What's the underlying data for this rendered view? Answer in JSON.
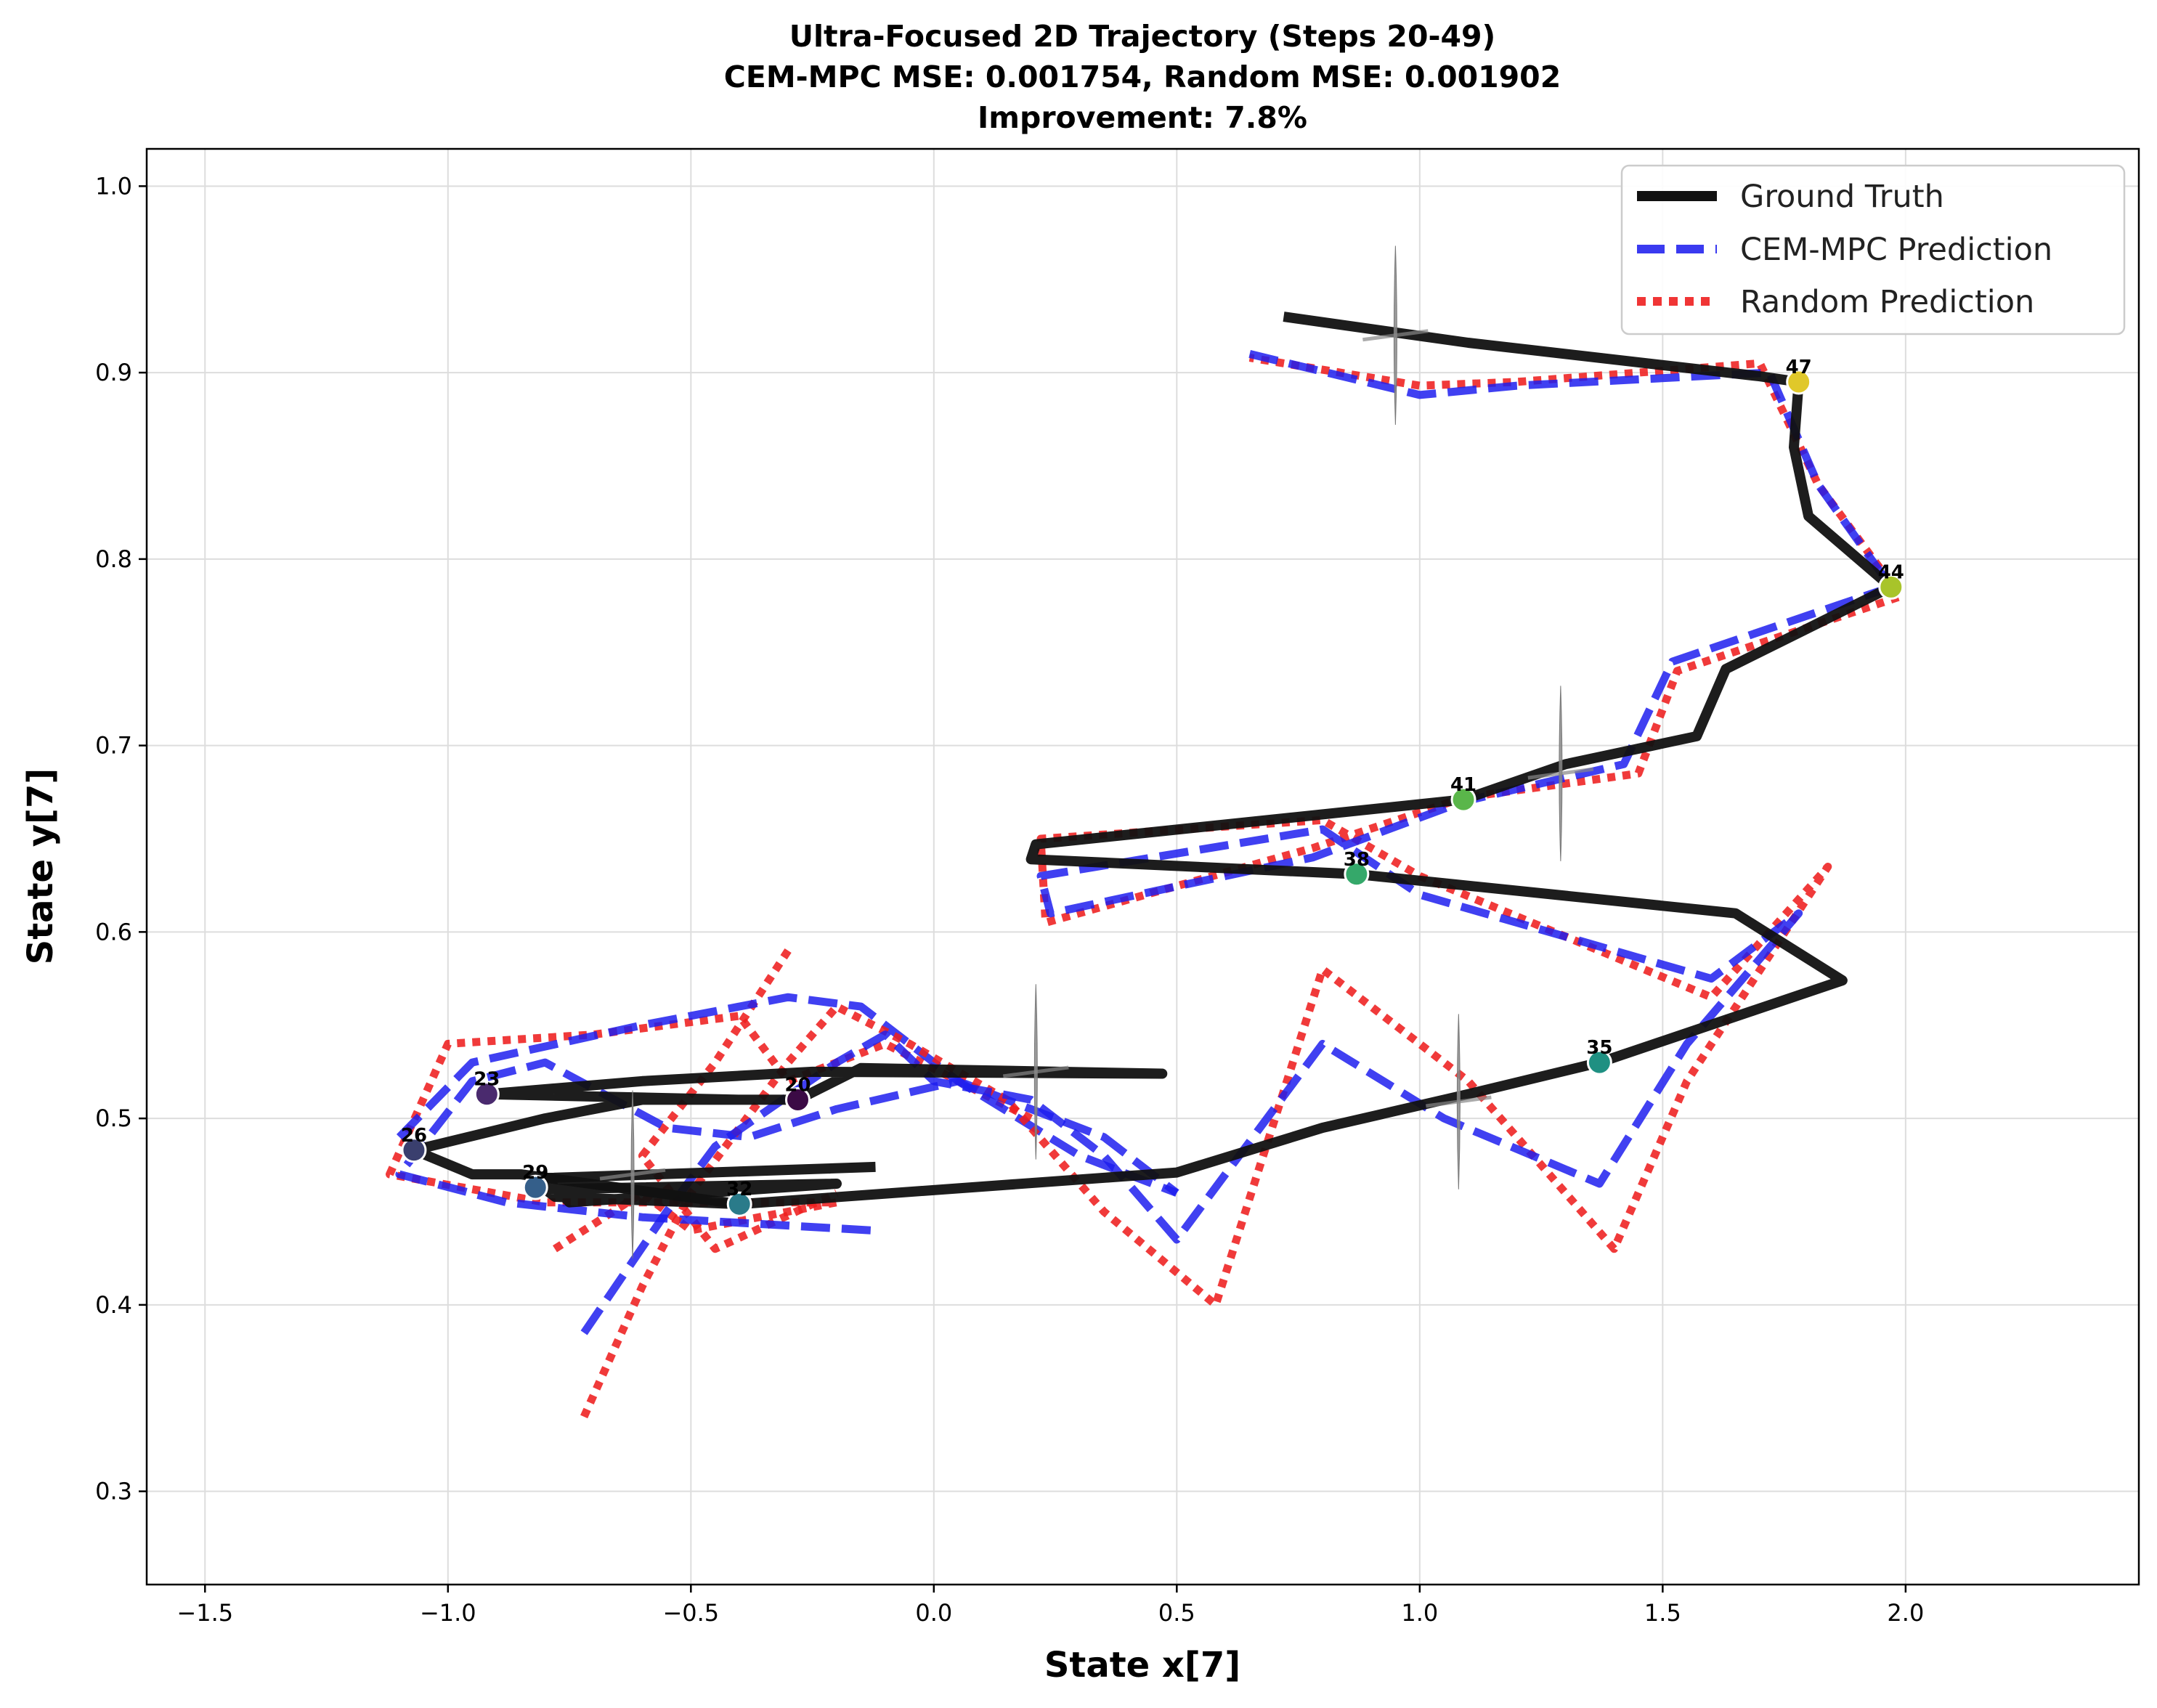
{
  "chart_data": {
    "type": "line",
    "title_lines": [
      "Ultra-Focused 2D Trajectory (Steps 20-49)",
      "CEM-MPC MSE: 0.001754, Random MSE: 0.001902",
      "Improvement: 7.8%"
    ],
    "xlabel": "State x[7]",
    "ylabel": "State y[7]",
    "xlim": [
      -1.62,
      2.48
    ],
    "ylim": [
      0.25,
      1.02
    ],
    "xticks": [
      -1.5,
      -1.0,
      -0.5,
      0.0,
      0.5,
      1.0,
      1.5,
      2.0
    ],
    "yticks": [
      0.3,
      0.4,
      0.5,
      0.6,
      0.7,
      0.8,
      0.9,
      1.0
    ],
    "xtick_labels": [
      "−1.5",
      "−1.0",
      "−0.5",
      "0.0",
      "0.5",
      "1.0",
      "1.5",
      "2.0"
    ],
    "ytick_labels": [
      "0.3",
      "0.4",
      "0.5",
      "0.6",
      "0.7",
      "0.8",
      "0.9",
      "1.0"
    ],
    "grid": true,
    "legend_position": "top-right",
    "series": [
      {
        "name": "Ground Truth",
        "color": "#111111",
        "style": "solid",
        "points": [
          [
            -0.12,
            0.474
          ],
          [
            -0.8,
            0.468
          ],
          [
            -0.75,
            0.455
          ],
          [
            -0.2,
            0.465
          ],
          [
            -0.8,
            0.462
          ],
          [
            -0.78,
            0.458
          ],
          [
            -0.4,
            0.454
          ],
          [
            0.5,
            0.471
          ],
          [
            0.8,
            0.495
          ],
          [
            1.1,
            0.513
          ],
          [
            1.37,
            0.53
          ],
          [
            1.87,
            0.574
          ],
          [
            1.65,
            0.61
          ],
          [
            0.87,
            0.631
          ],
          [
            0.2,
            0.639
          ],
          [
            0.21,
            0.647
          ],
          [
            1.09,
            0.671
          ],
          [
            1.3,
            0.69
          ],
          [
            1.57,
            0.705
          ],
          [
            1.63,
            0.741
          ],
          [
            1.97,
            0.785
          ],
          [
            1.8,
            0.823
          ],
          [
            1.77,
            0.86
          ],
          [
            1.78,
            0.895
          ],
          [
            1.7,
            0.898
          ],
          [
            1.1,
            0.916
          ],
          [
            0.72,
            0.93
          ]
        ]
      },
      {
        "name": "CEM-MPC Prediction",
        "color": "#1f1fee",
        "style": "dashed",
        "points": [
          [
            -0.72,
            0.385
          ],
          [
            -0.55,
            0.45
          ],
          [
            -0.45,
            0.485
          ],
          [
            -0.2,
            0.53
          ],
          [
            -0.1,
            0.545
          ],
          [
            0.0,
            0.52
          ],
          [
            0.2,
            0.51
          ],
          [
            0.35,
            0.48
          ],
          [
            0.5,
            0.435
          ],
          [
            0.8,
            0.54
          ],
          [
            1.05,
            0.5
          ],
          [
            1.37,
            0.465
          ],
          [
            1.55,
            0.54
          ],
          [
            1.78,
            0.61
          ],
          [
            1.6,
            0.575
          ],
          [
            1.0,
            0.62
          ],
          [
            0.8,
            0.655
          ],
          [
            0.22,
            0.63
          ],
          [
            0.24,
            0.61
          ],
          [
            0.78,
            0.64
          ],
          [
            1.09,
            0.67
          ],
          [
            1.42,
            0.69
          ],
          [
            1.52,
            0.745
          ],
          [
            1.97,
            0.785
          ],
          [
            1.82,
            0.84
          ],
          [
            1.72,
            0.9
          ],
          [
            1.2,
            0.893
          ],
          [
            1.0,
            0.888
          ],
          [
            0.65,
            0.91
          ]
        ]
      },
      {
        "name": "Random Prediction",
        "color": "#ee1f1f",
        "style": "dotted",
        "points": [
          [
            -0.72,
            0.34
          ],
          [
            -0.6,
            0.41
          ],
          [
            -0.5,
            0.46
          ],
          [
            -0.3,
            0.53
          ],
          [
            -0.2,
            0.56
          ],
          [
            -0.05,
            0.54
          ],
          [
            0.15,
            0.51
          ],
          [
            0.35,
            0.45
          ],
          [
            0.58,
            0.4
          ],
          [
            0.8,
            0.58
          ],
          [
            1.1,
            0.52
          ],
          [
            1.4,
            0.43
          ],
          [
            1.55,
            0.52
          ],
          [
            1.84,
            0.635
          ],
          [
            1.6,
            0.565
          ],
          [
            1.0,
            0.63
          ],
          [
            0.8,
            0.66
          ],
          [
            0.22,
            0.65
          ],
          [
            0.23,
            0.605
          ],
          [
            0.78,
            0.645
          ],
          [
            1.09,
            0.672
          ],
          [
            1.45,
            0.685
          ],
          [
            1.53,
            0.74
          ],
          [
            1.99,
            0.78
          ],
          [
            1.82,
            0.84
          ],
          [
            1.7,
            0.905
          ],
          [
            1.2,
            0.895
          ],
          [
            1.0,
            0.893
          ],
          [
            0.65,
            0.908
          ]
        ]
      }
    ],
    "extra_paths": {
      "cem_loops": [
        [
          [
            -0.13,
            0.44
          ],
          [
            -0.6,
            0.447
          ],
          [
            -0.88,
            0.455
          ],
          [
            -1.1,
            0.47
          ],
          [
            -0.95,
            0.52
          ],
          [
            -0.8,
            0.53
          ],
          [
            -0.55,
            0.495
          ],
          [
            -0.38,
            0.49
          ],
          [
            -0.2,
            0.505
          ],
          [
            0.05,
            0.52
          ],
          [
            0.35,
            0.49
          ],
          [
            0.5,
            0.46
          ]
        ],
        [
          [
            -1.1,
            0.49
          ],
          [
            -0.95,
            0.53
          ],
          [
            -0.6,
            0.55
          ],
          [
            -0.3,
            0.565
          ],
          [
            -0.15,
            0.56
          ],
          [
            0.05,
            0.52
          ],
          [
            0.3,
            0.48
          ],
          [
            0.5,
            0.46
          ]
        ]
      ],
      "random_loops": [
        [
          [
            -0.78,
            0.43
          ],
          [
            -0.6,
            0.46
          ],
          [
            -0.5,
            0.44
          ],
          [
            -0.3,
            0.45
          ],
          [
            -0.2,
            0.455
          ],
          [
            -0.8,
            0.455
          ],
          [
            -1.12,
            0.47
          ],
          [
            -1.0,
            0.54
          ],
          [
            -0.7,
            0.545
          ],
          [
            -0.4,
            0.555
          ],
          [
            -0.3,
            0.52
          ],
          [
            -0.1,
            0.54
          ],
          [
            0.2,
            0.5
          ]
        ],
        [
          [
            -0.3,
            0.59
          ],
          [
            -0.45,
            0.53
          ],
          [
            -0.6,
            0.48
          ],
          [
            -0.45,
            0.43
          ],
          [
            -0.2,
            0.46
          ]
        ]
      ],
      "gt_loops": [
        [
          [
            -0.4,
            0.454
          ],
          [
            -0.85,
            0.47
          ],
          [
            -0.95,
            0.47
          ],
          [
            -1.07,
            0.483
          ],
          [
            -0.8,
            0.5
          ],
          [
            -0.6,
            0.51
          ],
          [
            -0.28,
            0.51
          ],
          [
            -0.15,
            0.527
          ],
          [
            0.47,
            0.524
          ],
          [
            -0.25,
            0.525
          ],
          [
            -0.6,
            0.52
          ],
          [
            -0.92,
            0.513
          ],
          [
            -0.4,
            0.51
          ]
        ]
      ]
    },
    "markers": [
      {
        "step": "20",
        "x": -0.28,
        "y": 0.51,
        "color": "#3b0a45"
      },
      {
        "step": "23",
        "x": -0.92,
        "y": 0.513,
        "color": "#4a2a6e"
      },
      {
        "step": "26",
        "x": -1.07,
        "y": 0.483,
        "color": "#3a3f6e"
      },
      {
        "step": "29",
        "x": -0.82,
        "y": 0.463,
        "color": "#355f8a"
      },
      {
        "step": "32",
        "x": -0.4,
        "y": 0.454,
        "color": "#2a7b8a"
      },
      {
        "step": "35",
        "x": 1.37,
        "y": 0.53,
        "color": "#1f9082"
      },
      {
        "step": "38",
        "x": 0.87,
        "y": 0.631,
        "color": "#35a86a"
      },
      {
        "step": "41",
        "x": 1.09,
        "y": 0.671,
        "color": "#5ab64a"
      },
      {
        "step": "44",
        "x": 1.97,
        "y": 0.785,
        "color": "#a8c42a"
      },
      {
        "step": "47",
        "x": 1.78,
        "y": 0.895,
        "color": "#e0c82a"
      }
    ],
    "uncertainty_glyphs": [
      {
        "x": 0.95,
        "y": 0.92,
        "dy": 0.048
      },
      {
        "x": 1.29,
        "y": 0.685,
        "dy": 0.047
      },
      {
        "x": 0.21,
        "y": 0.525,
        "dy": 0.047
      },
      {
        "x": 1.08,
        "y": 0.509,
        "dy": 0.047
      },
      {
        "x": -0.62,
        "y": 0.47,
        "dy": 0.045
      }
    ]
  }
}
